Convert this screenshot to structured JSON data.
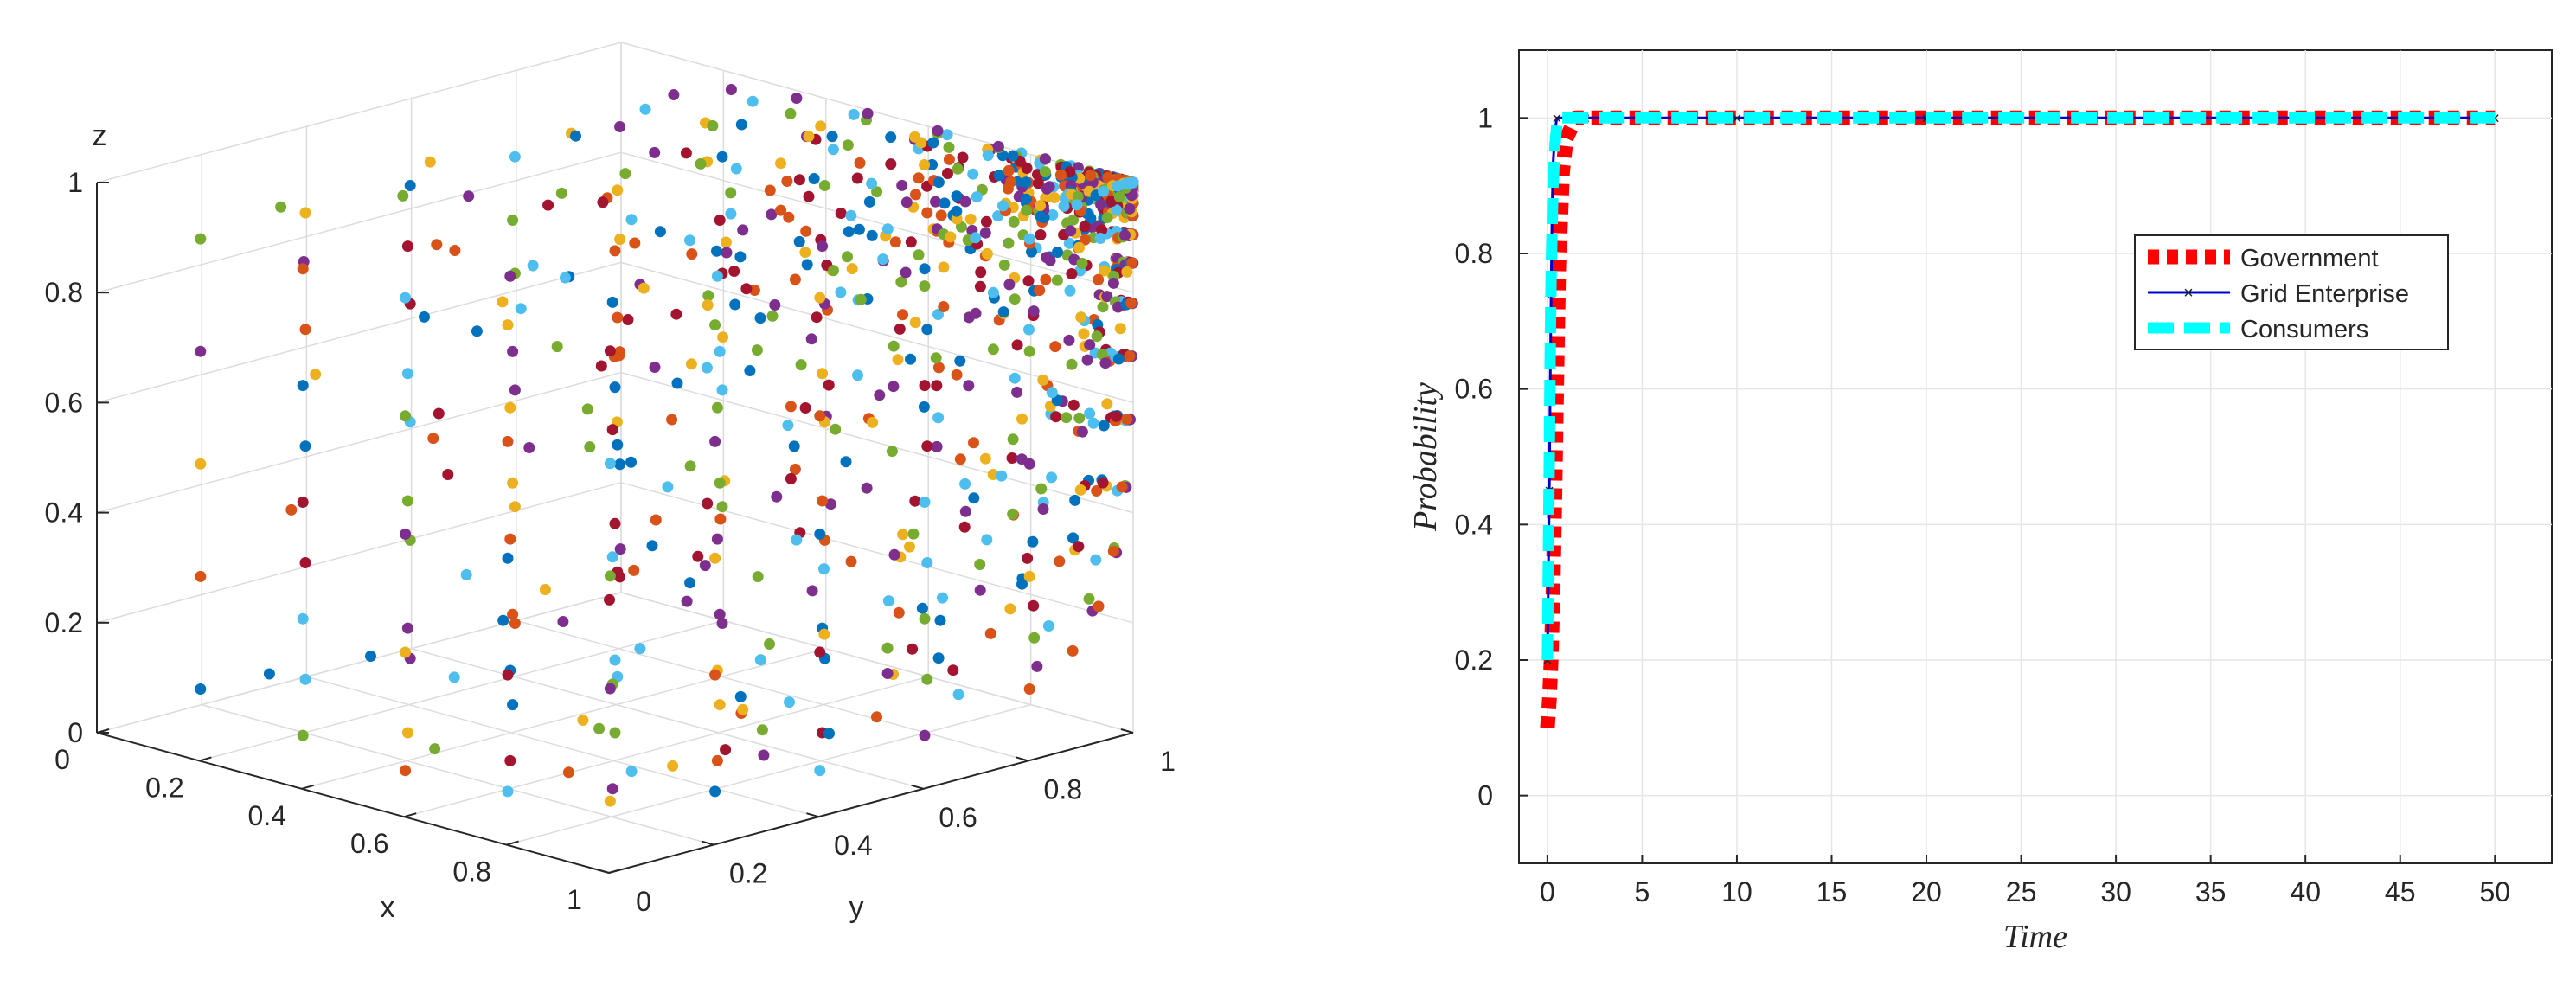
{
  "chart_data": [
    {
      "type": "scatter",
      "title": "",
      "xlabel": "x",
      "ylabel": "y",
      "zlabel": "z",
      "xlim": [
        0,
        1
      ],
      "ylim": [
        0,
        1
      ],
      "zlim": [
        0,
        1
      ],
      "x_ticks": [
        "0",
        "0.2",
        "0.4",
        "0.6",
        "0.8",
        "1"
      ],
      "y_ticks": [
        "0",
        "0.2",
        "0.4",
        "0.6",
        "0.8",
        "1"
      ],
      "z_ticks": [
        "0",
        "0.2",
        "0.4",
        "0.6",
        "0.8",
        "1"
      ],
      "grid": true,
      "view": "3d",
      "colors": [
        "#0072BD",
        "#D95319",
        "#EDB120",
        "#7E2F8E",
        "#77AC30",
        "#4DBEEE",
        "#A2142F"
      ],
      "initial_grid_values": [
        0.1,
        0.3,
        0.5,
        0.7,
        0.9
      ],
      "equilibrium": {
        "x": 1,
        "y": 1,
        "z": 1
      }
    },
    {
      "type": "line",
      "title": "",
      "xlabel": "Time",
      "ylabel": "Probability",
      "xlim": [
        -1.5,
        53
      ],
      "ylim": [
        -0.1,
        1.1
      ],
      "x_ticks": [
        "0",
        "5",
        "10",
        "15",
        "20",
        "25",
        "30",
        "35",
        "40",
        "45",
        "50"
      ],
      "y_ticks": [
        "0",
        "0.2",
        "0.4",
        "0.6",
        "0.8",
        "1"
      ],
      "grid": true,
      "legend_position": "upper-right",
      "series": [
        {
          "name": "Government",
          "color": "#FF0000",
          "style": "dotted-thick",
          "x": [
            0,
            0.1,
            0.2,
            0.3,
            0.4,
            0.5,
            0.6,
            0.8,
            1.0,
            1.5,
            2,
            5,
            10,
            20,
            30,
            40,
            50
          ],
          "y": [
            0.1,
            0.14,
            0.2,
            0.3,
            0.45,
            0.62,
            0.78,
            0.92,
            0.97,
            1.0,
            1.0,
            1.0,
            1.0,
            1.0,
            1.0,
            1.0,
            1.0
          ]
        },
        {
          "name": "Grid Enterprise",
          "color": "#0000CC",
          "style": "solid-thin-markers",
          "x": [
            0,
            0.05,
            0.1,
            0.15,
            0.2,
            0.25,
            0.3,
            0.4,
            0.5,
            1,
            2,
            5,
            10,
            20,
            30,
            40,
            50
          ],
          "y": [
            0.2,
            0.32,
            0.45,
            0.6,
            0.74,
            0.86,
            0.93,
            0.98,
            1.0,
            1.0,
            1.0,
            1.0,
            1.0,
            1.0,
            1.0,
            1.0,
            1.0
          ]
        },
        {
          "name": "Consumers",
          "color": "#00FFFF",
          "style": "dashed-thick",
          "x": [
            0,
            0.05,
            0.1,
            0.15,
            0.2,
            0.3,
            0.4,
            0.5,
            0.7,
            1,
            2,
            5,
            10,
            20,
            30,
            40,
            50
          ],
          "y": [
            0.2,
            0.35,
            0.5,
            0.65,
            0.77,
            0.9,
            0.96,
            0.99,
            1.0,
            1.0,
            1.0,
            1.0,
            1.0,
            1.0,
            1.0,
            1.0,
            1.0
          ]
        }
      ]
    }
  ]
}
